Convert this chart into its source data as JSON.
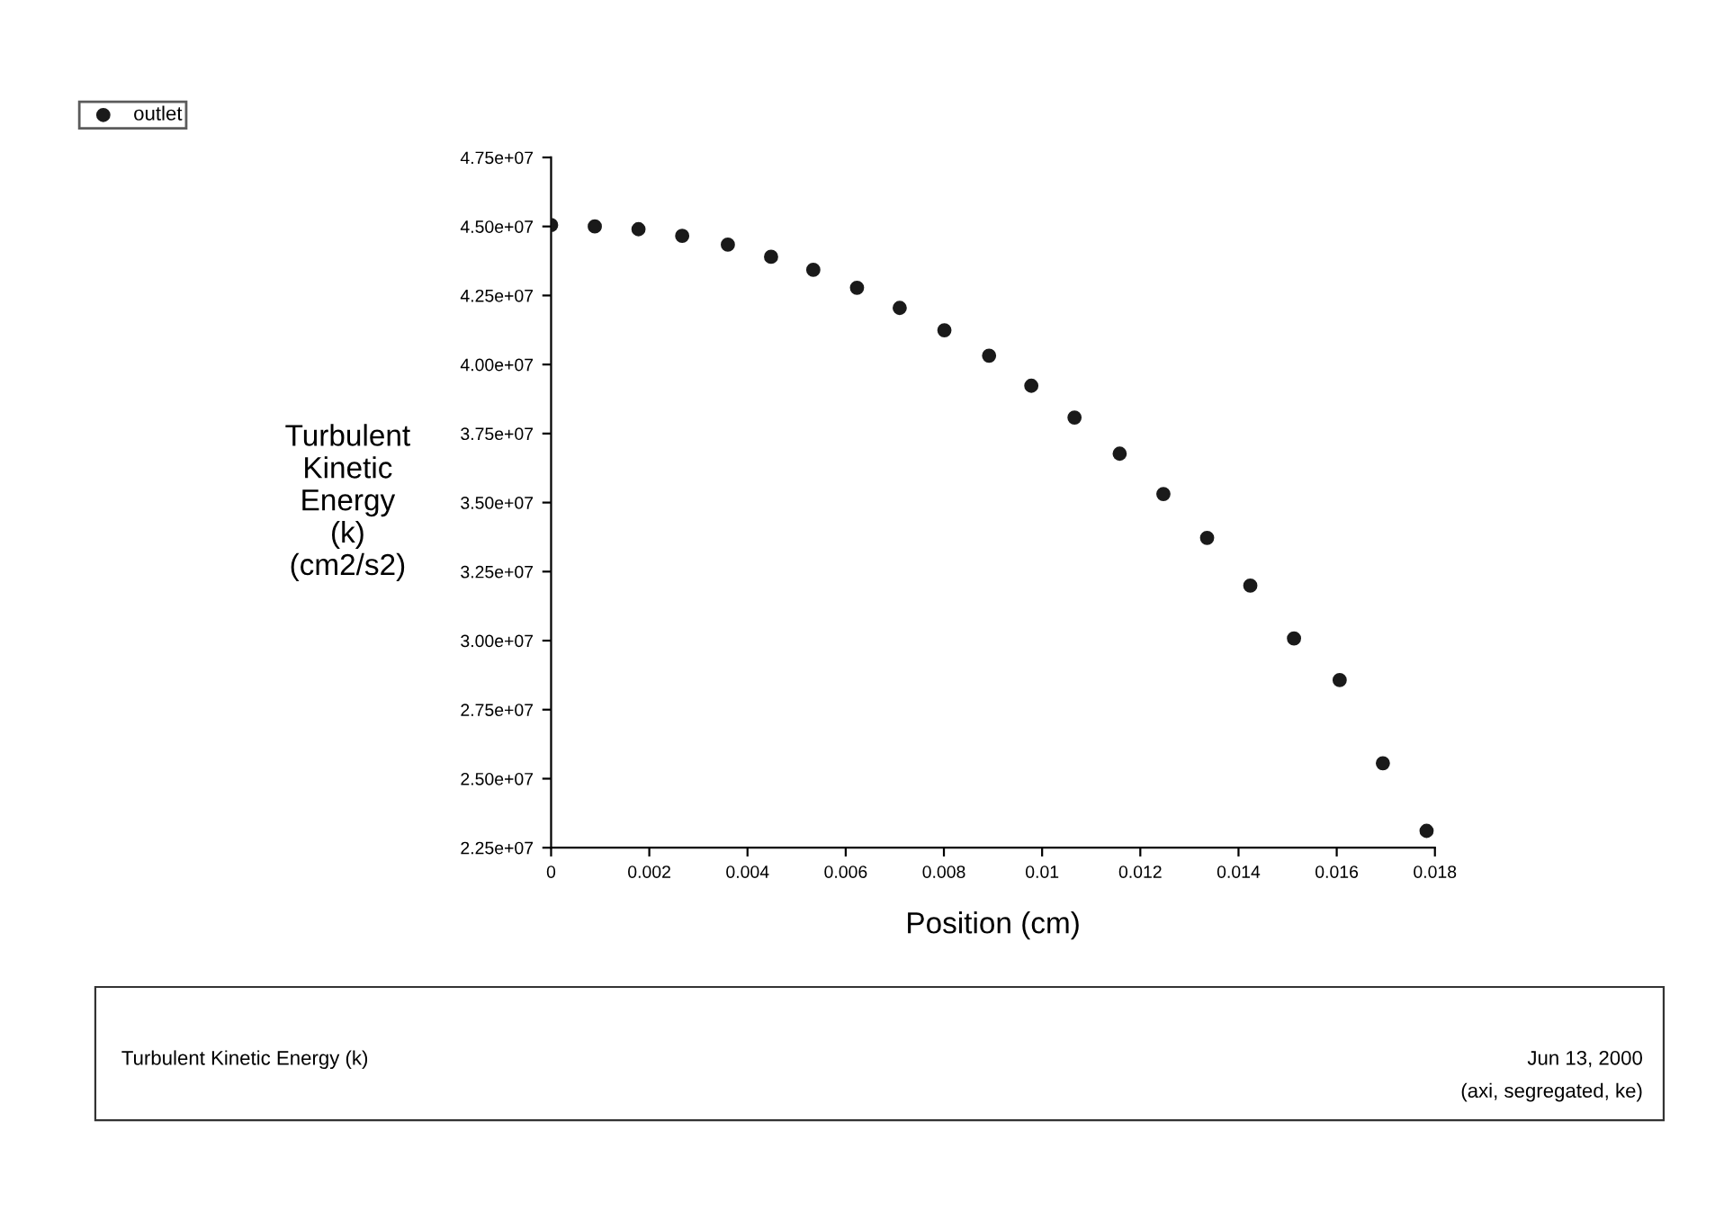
{
  "chart_data": {
    "type": "scatter",
    "xlabel": "Position (cm)",
    "ylabel": "Turbulent\nKinetic\nEnergy\n(k)\n(cm2/s2)",
    "x": [
      0,
      0.00089,
      0.00178,
      0.00267,
      0.0036,
      0.00448,
      0.00534,
      0.00623,
      0.0071,
      0.00801,
      0.00892,
      0.00978,
      0.01066,
      0.01158,
      0.01247,
      0.01336,
      0.01424,
      0.01513,
      0.01606,
      0.01694,
      0.01783
    ],
    "series": [
      {
        "name": "outlet",
        "color": "#1a1a1a",
        "values": [
          45050000,
          45000000,
          44900000,
          44660000,
          44340000,
          43900000,
          43430000,
          42780000,
          42050000,
          41240000,
          40320000,
          39230000,
          38080000,
          36770000,
          35310000,
          33720000,
          31990000,
          30080000,
          28570000,
          25560000,
          23110000
        ]
      }
    ],
    "xlim": [
      0,
      0.018
    ],
    "xticks": [
      0,
      0.002,
      0.004,
      0.006,
      0.008,
      0.01,
      0.012,
      0.014,
      0.016,
      0.018
    ],
    "ylim": [
      22500000,
      47500000
    ],
    "yticks": [
      {
        "value": 22500000,
        "label": "2.25e+07"
      },
      {
        "value": 25000000,
        "label": "2.50e+07"
      },
      {
        "value": 27500000,
        "label": "2.75e+07"
      },
      {
        "value": 30000000,
        "label": "3.00e+07"
      },
      {
        "value": 32500000,
        "label": "3.25e+07"
      },
      {
        "value": 35000000,
        "label": "3.50e+07"
      },
      {
        "value": 37500000,
        "label": "3.75e+07"
      },
      {
        "value": 40000000,
        "label": "4.00e+07"
      },
      {
        "value": 42500000,
        "label": "4.25e+07"
      },
      {
        "value": 45000000,
        "label": "4.50e+07"
      },
      {
        "value": 47500000,
        "label": "4.75e+07"
      }
    ],
    "marker": "circle",
    "legend": "top left",
    "grid": false,
    "annotations": [
      "Turbulent Kinetic Energy (k)",
      "Jun 13, 2000",
      "(axi, segregated, ke)"
    ]
  }
}
